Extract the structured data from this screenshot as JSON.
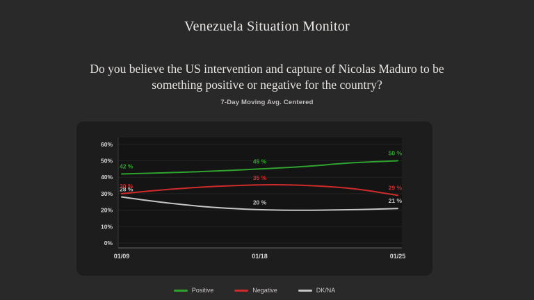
{
  "page": {
    "title": "Venezuela Situation Monitor",
    "question_lines": [
      "Do you believe the US intervention and capture of Nicolas Maduro to be",
      "something positive or negative for the country?"
    ],
    "subtitle": "7-Day Moving Avg. Centered"
  },
  "colors": {
    "background": "#2a2929",
    "panel": "#1e1d1d",
    "plot_background": "#141414",
    "grid": "#242323",
    "left_spine": "#3a3a3a",
    "bottom_spine": "#4e4e4e",
    "axis_text": "#d8d5d5",
    "legend_text": "#c8c5c5",
    "positive": "#2ea42e",
    "negative": "#d02b2b",
    "dkna": "#c6c6c6"
  },
  "chart_data": {
    "type": "line",
    "title": "7-Day Moving Avg. Centered",
    "x_ticks": [
      "01/09",
      "01/18",
      "01/25"
    ],
    "y_ticks": [
      {
        "label": "0%",
        "value": 0
      },
      {
        "label": "10%",
        "value": 10
      },
      {
        "label": "20%",
        "value": 20
      },
      {
        "label": "30%",
        "value": 30
      },
      {
        "label": "40%",
        "value": 40
      },
      {
        "label": "50%",
        "value": 50
      },
      {
        "label": "60%",
        "value": 60
      }
    ],
    "ylim": [
      0,
      65
    ],
    "grid": "faint-horizontal",
    "legend_position": "bottom",
    "series": [
      {
        "name": "Positive",
        "color_key": "positive",
        "points": [
          [
            0,
            42
          ],
          [
            0.14,
            42.6
          ],
          [
            0.3,
            43.5
          ],
          [
            0.5,
            45
          ],
          [
            0.66,
            46.5
          ],
          [
            0.84,
            48.8
          ],
          [
            1,
            50
          ]
        ],
        "labels": [
          {
            "t": 0,
            "pct": 42,
            "text": "42 %"
          },
          {
            "t": 0.5,
            "pct": 45,
            "text": "45 %"
          },
          {
            "t": 1,
            "pct": 50,
            "text": "50 %"
          }
        ]
      },
      {
        "name": "Negative",
        "color_key": "negative",
        "points": [
          [
            0,
            30
          ],
          [
            0.14,
            32.2
          ],
          [
            0.3,
            34.1
          ],
          [
            0.46,
            35.2
          ],
          [
            0.58,
            35.4
          ],
          [
            0.72,
            34.6
          ],
          [
            0.86,
            32.6
          ],
          [
            1,
            29
          ]
        ],
        "labels": [
          {
            "t": 0,
            "pct": 30,
            "text": "30 %"
          },
          {
            "t": 0.5,
            "pct": 35,
            "text": "35 %"
          },
          {
            "t": 1,
            "pct": 29,
            "text": "29 %"
          }
        ]
      },
      {
        "name": "DK/NA",
        "color_key": "dkna",
        "points": [
          [
            0,
            28
          ],
          [
            0.14,
            24.9
          ],
          [
            0.3,
            22.1
          ],
          [
            0.45,
            20.6
          ],
          [
            0.58,
            20
          ],
          [
            0.72,
            20
          ],
          [
            0.86,
            20.4
          ],
          [
            1,
            21
          ]
        ],
        "labels": [
          {
            "t": 0,
            "pct": 28,
            "text": "28 %"
          },
          {
            "t": 0.5,
            "pct": 20,
            "text": "20 %"
          },
          {
            "t": 1,
            "pct": 21,
            "text": "21 %"
          }
        ]
      }
    ]
  }
}
